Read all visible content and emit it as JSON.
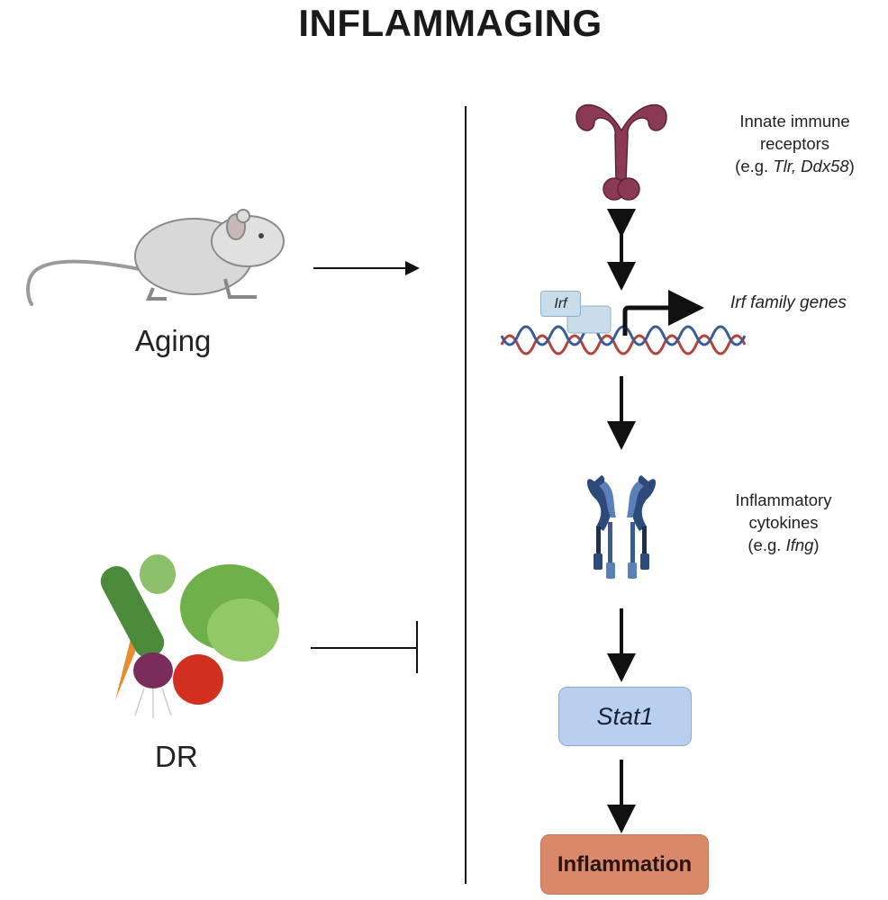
{
  "title": "INFLAMMAGING",
  "left": {
    "aging_label": "Aging",
    "dr_label": "DR"
  },
  "pathway": {
    "receptors_line1": "Innate immune",
    "receptors_line2": "receptors",
    "receptors_prefix": "(e.g. ",
    "receptors_examples": "Tlr, Ddx58",
    "receptors_suffix": ")",
    "irf_box": "Irf",
    "irf_genes": "Irf family genes",
    "cytokines_line1": "Inflammatory",
    "cytokines_line2": "cytokines",
    "cytokines_prefix": "(e.g. ",
    "cytokines_examples": "Ifng",
    "cytokines_suffix": ")",
    "stat1": "Stat1",
    "inflammation": "Inflammation"
  },
  "colors": {
    "receptor": "#8b3a55",
    "cytokine_receptor": "#3b5a8e",
    "irf_box": "#c9dcea",
    "stat1_box": "#b8cff0",
    "inflammation_box": "#d9896a",
    "dna_red": "#b5443a",
    "dna_blue": "#3a5c9a"
  }
}
